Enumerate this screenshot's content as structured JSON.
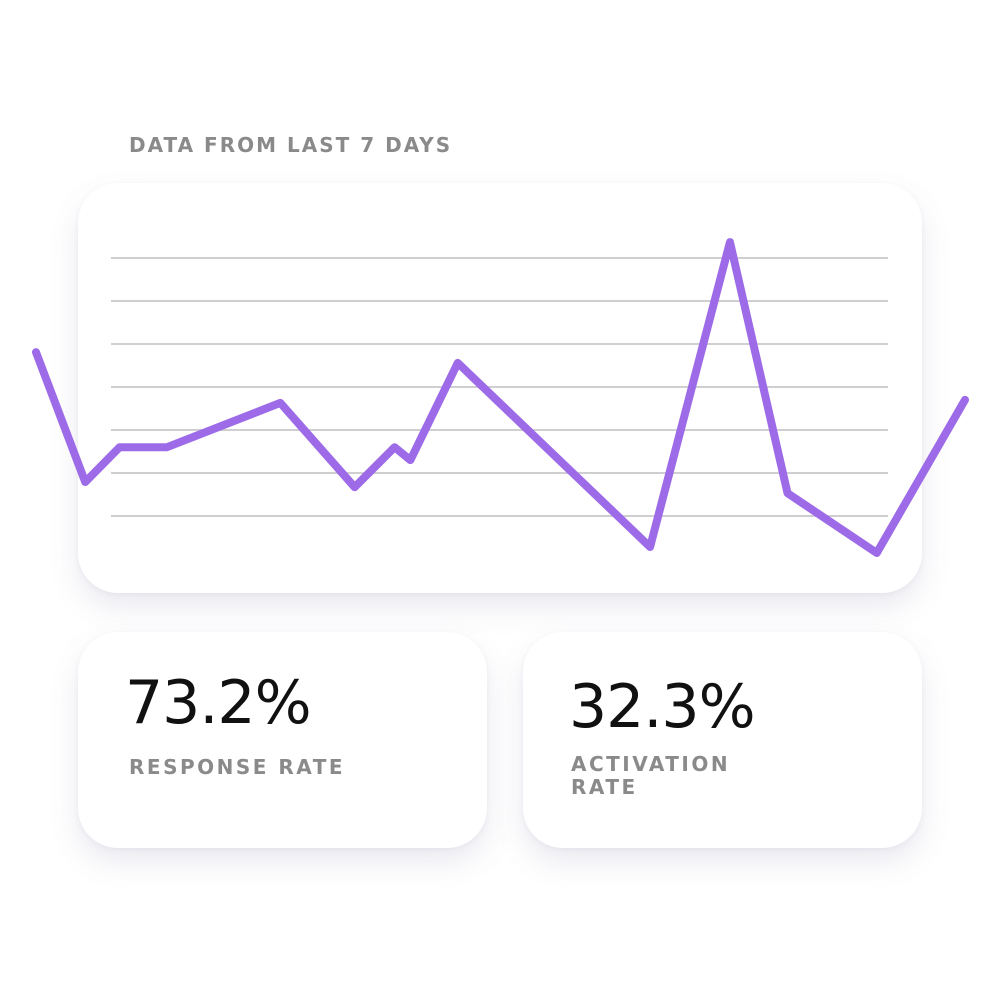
{
  "header": {
    "title": "DATA FROM LAST 7 DAYS"
  },
  "chart_data": {
    "type": "line",
    "x": [
      0,
      5.3,
      9.0,
      14.1,
      26.3,
      34.3,
      38.6,
      40.3,
      45.4,
      66.1,
      74.7,
      80.9,
      90.5,
      100
    ],
    "values": [
      3.81,
      0.79,
      1.6,
      1.6,
      2.63,
      0.67,
      1.6,
      1.3,
      3.56,
      -0.72,
      6.37,
      0.53,
      -0.86,
      2.7
    ],
    "color": "#9d6be8",
    "xlim": [
      0,
      100
    ],
    "ylim": [
      0,
      6
    ],
    "yticks": [
      0,
      1,
      2,
      3,
      4,
      5,
      6
    ],
    "grid": true
  },
  "stats": [
    {
      "value": "73.2%",
      "label": "RESPONSE RATE"
    },
    {
      "value": "32.3%",
      "label": "ACTIVATION RATE"
    }
  ]
}
